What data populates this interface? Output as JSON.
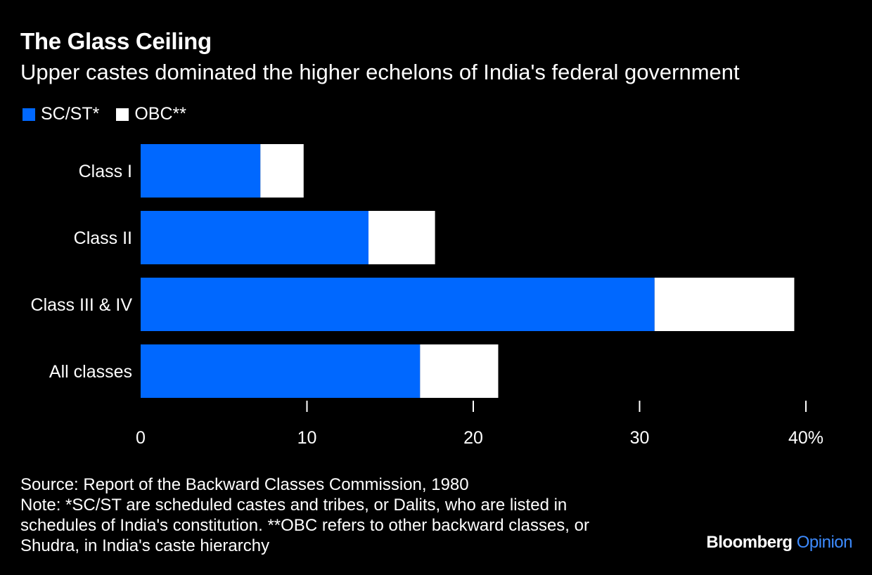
{
  "title": "The Glass Ceiling",
  "subtitle": "Upper castes dominated the higher echelons of India's federal government",
  "colors": {
    "background": "#000000",
    "sc_st": "#0068ff",
    "obc": "#ffffff",
    "text": "#ffffff",
    "brand_accent": "#3d8bff"
  },
  "chart_data": {
    "type": "bar",
    "orientation": "horizontal",
    "stacked": true,
    "categories": [
      "Class I",
      "Class II",
      "Class III & IV",
      "All classes"
    ],
    "series": [
      {
        "name": "SC/ST*",
        "values": [
          7.2,
          13.7,
          30.9,
          16.8
        ]
      },
      {
        "name": "OBC**",
        "values": [
          2.6,
          4.0,
          8.4,
          4.7
        ]
      }
    ],
    "xlim": [
      0,
      40
    ],
    "xticks": [
      0,
      10,
      20,
      30,
      40
    ],
    "xtick_labels": [
      "0",
      "10",
      "20",
      "30",
      "40%"
    ],
    "grid": false,
    "legend_position": "top-left"
  },
  "footer": {
    "source": "Source: Report of the Backward Classes Commission, 1980",
    "note_lines": [
      "Note: *SC/ST are scheduled castes and tribes, or Dalits, who are listed in",
      "schedules of India's constitution. **OBC refers to other backward classes, or",
      "Shudra, in India's caste hierarchy"
    ]
  },
  "brand": {
    "name": "Bloomberg",
    "section": "Opinion"
  }
}
